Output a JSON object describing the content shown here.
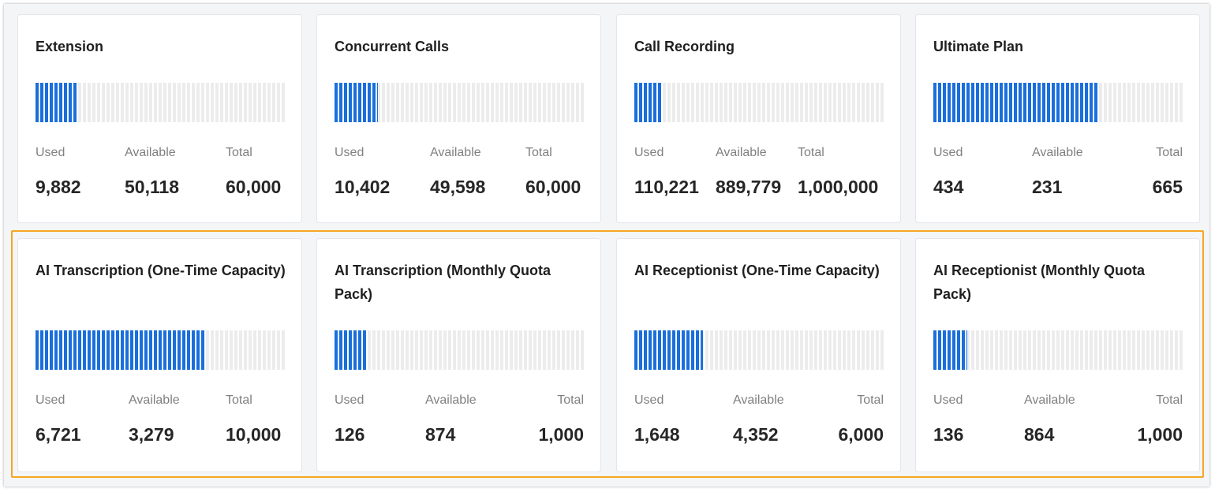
{
  "colors": {
    "accent": "#1a6fdc",
    "track": "#ececec",
    "highlight": "#f5a623"
  },
  "labels": {
    "used": "Used",
    "available": "Available",
    "total": "Total"
  },
  "cards": [
    {
      "title": "Extension",
      "used": "9,882",
      "available": "50,118",
      "total": "60,000",
      "fill_fraction": 0.165
    },
    {
      "title": "Concurrent Calls",
      "used": "10,402",
      "available": "49,598",
      "total": "60,000",
      "fill_fraction": 0.173
    },
    {
      "title": "Call Recording",
      "used": "110,221",
      "available": "889,779",
      "total": "1,000,000",
      "fill_fraction": 0.11
    },
    {
      "title": "Ultimate Plan",
      "used": "434",
      "available": "231",
      "total": "665",
      "fill_fraction": 0.653
    },
    {
      "title": "AI Transcription (One-Time Capacity)",
      "used": "6,721",
      "available": "3,279",
      "total": "10,000",
      "fill_fraction": 0.672
    },
    {
      "title": "AI Transcription (Monthly Quota Pack)",
      "used": "126",
      "available": "874",
      "total": "1,000",
      "fill_fraction": 0.126
    },
    {
      "title": "AI Receptionist (One-Time Capacity)",
      "used": "1,648",
      "available": "4,352",
      "total": "6,000",
      "fill_fraction": 0.275
    },
    {
      "title": "AI Receptionist (Monthly Quota Pack)",
      "used": "136",
      "available": "864",
      "total": "1,000",
      "fill_fraction": 0.136
    }
  ]
}
